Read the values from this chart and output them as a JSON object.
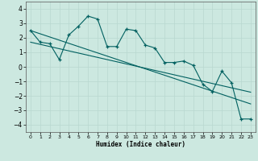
{
  "xlabel": "Humidex (Indice chaleur)",
  "background_color": "#cce8e0",
  "line_color": "#006060",
  "grid_color": "#b8d8d0",
  "x_data": [
    0,
    1,
    2,
    3,
    4,
    5,
    6,
    7,
    8,
    9,
    10,
    11,
    12,
    13,
    14,
    15,
    16,
    17,
    18,
    19,
    20,
    21,
    22,
    23
  ],
  "y_main": [
    2.5,
    1.7,
    1.6,
    0.5,
    2.2,
    2.8,
    3.5,
    3.3,
    1.4,
    1.4,
    2.6,
    2.5,
    1.5,
    1.3,
    0.3,
    0.3,
    0.4,
    0.1,
    -1.2,
    -1.7,
    -0.3,
    -1.1,
    -3.6,
    -3.6
  ],
  "y_trend1": [
    1.7,
    1.55,
    1.4,
    1.25,
    1.1,
    0.95,
    0.8,
    0.65,
    0.5,
    0.35,
    0.2,
    0.05,
    -0.1,
    -0.25,
    -0.4,
    -0.55,
    -0.7,
    -0.85,
    -1.0,
    -1.15,
    -1.3,
    -1.45,
    -1.6,
    -1.75
  ],
  "y_trend2": [
    2.5,
    2.28,
    2.06,
    1.84,
    1.62,
    1.4,
    1.18,
    0.96,
    0.74,
    0.52,
    0.3,
    0.08,
    -0.14,
    -0.36,
    -0.58,
    -0.8,
    -1.02,
    -1.24,
    -1.46,
    -1.68,
    -1.9,
    -2.12,
    -2.34,
    -2.56
  ],
  "ylim": [
    -4.5,
    4.5
  ],
  "yticks": [
    -4,
    -3,
    -2,
    -1,
    0,
    1,
    2,
    3,
    4
  ],
  "xlim": [
    -0.5,
    23.5
  ]
}
